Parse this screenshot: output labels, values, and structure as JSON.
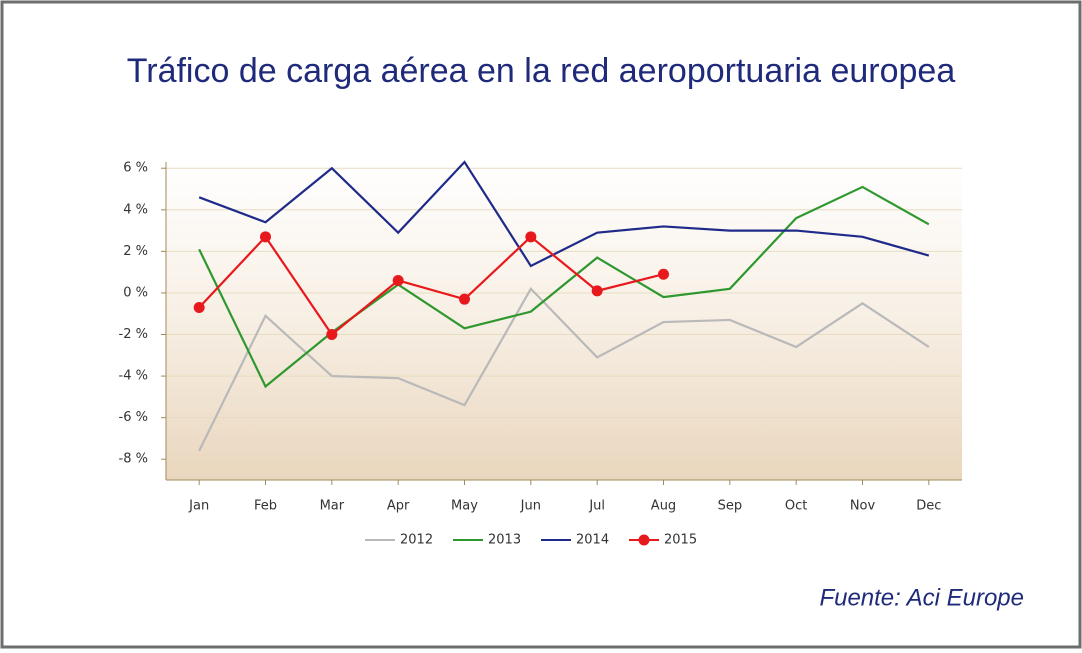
{
  "chart_data": {
    "type": "line",
    "title": "Tráfico de carga aérea en la red aeroportuaria europea",
    "source": "Fuente: Aci Europe",
    "categories": [
      "Jan",
      "Feb",
      "Mar",
      "Apr",
      "May",
      "Jun",
      "Jul",
      "Aug",
      "Sep",
      "Oct",
      "Nov",
      "Dec"
    ],
    "series": [
      {
        "name": "2012",
        "color": "#b9b9b9",
        "values": [
          -7.6,
          -1.1,
          -4.0,
          -4.1,
          -5.4,
          0.2,
          -3.1,
          -1.4,
          -1.3,
          -2.6,
          -0.5,
          -2.6
        ]
      },
      {
        "name": "2013",
        "color": "#2e982e",
        "values": [
          2.1,
          -4.5,
          -1.9,
          0.4,
          -1.7,
          -0.9,
          1.7,
          -0.2,
          0.2,
          3.6,
          5.1,
          3.3
        ]
      },
      {
        "name": "2014",
        "color": "#1f2a8a",
        "values": [
          4.6,
          3.4,
          6.0,
          2.9,
          6.3,
          1.3,
          2.9,
          3.2,
          3.0,
          3.0,
          2.7,
          1.8
        ]
      },
      {
        "name": "2015",
        "color": "#e8191c",
        "marker": "circle",
        "values": [
          -0.7,
          2.7,
          -2.0,
          0.6,
          -0.3,
          2.7,
          0.1,
          0.9,
          null,
          null,
          null,
          null
        ]
      }
    ],
    "ylim": [
      -9,
      6.3
    ],
    "yticks": [
      {
        "value": 6,
        "label": "6 %"
      },
      {
        "value": 4,
        "label": "4 %"
      },
      {
        "value": 2,
        "label": "2 %"
      },
      {
        "value": 0,
        "label": "0 %"
      },
      {
        "value": -2,
        "label": "-2 %"
      },
      {
        "value": -4,
        "label": "-4 %"
      },
      {
        "value": -6,
        "label": "-6 %"
      },
      {
        "value": -8,
        "label": "-8 %"
      }
    ],
    "grid": true
  }
}
